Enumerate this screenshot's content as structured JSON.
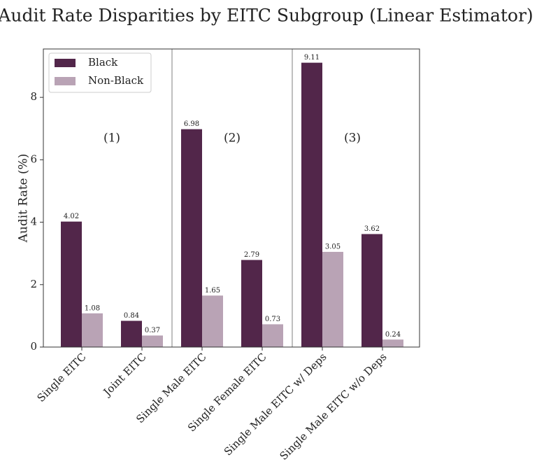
{
  "chart_data": {
    "type": "bar",
    "title": "Audit Rate Disparities by EITC Subgroup (Linear Estimator)",
    "y_label": "Audit Rate (%)",
    "categories": [
      "Single EITC",
      "Joint EITC",
      "Single Male EITC",
      "Single Female EITC",
      "Single Male EITC w/ Deps",
      "Single Male EITC w/o Deps"
    ],
    "series": [
      {
        "name": "Black",
        "color": "#52264a",
        "values": [
          4.02,
          0.84,
          6.98,
          2.79,
          9.11,
          3.62
        ]
      },
      {
        "name": "Non-Black",
        "color": "#b9a3b5",
        "values": [
          1.08,
          0.37,
          1.65,
          0.73,
          3.05,
          0.24
        ]
      }
    ],
    "annotations": [
      "(1)",
      "(2)",
      "(3)"
    ],
    "ylim": [
      0,
      9.55
    ],
    "yticks": [
      0,
      2,
      4,
      6,
      8
    ],
    "legend": "upper left"
  }
}
